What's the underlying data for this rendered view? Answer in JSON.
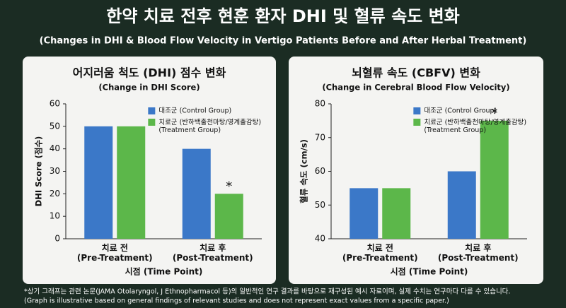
{
  "header": {
    "title": "한약 치료 전후 현훈 환자 DHI 및 혈류 속도 변화",
    "subtitle": "(Changes in DHI & Blood Flow Velocity in Vertigo Patients Before and After Herbal Treatment)"
  },
  "chart_data": [
    {
      "type": "bar",
      "title": "어지러움 척도 (DHI) 점수 변화",
      "subtitle": "(Change in DHI Score)",
      "y_label": "DHI Score (점수)",
      "x_label": "시점 (Time Point)",
      "categories": [
        "치료 전\n(Pre-Treatment)",
        "치료 후\n(Post-Treatment)"
      ],
      "series": [
        {
          "name": "대조군 (Control Group)",
          "color": "#3b78c8",
          "values": [
            50,
            40
          ]
        },
        {
          "name": "치료군 (반하백출천마탕/영계출감탕)\n(Treatment Group)",
          "color": "#5cb74a",
          "values": [
            50,
            20
          ]
        }
      ],
      "annotation": "*",
      "ylim": [
        0,
        60
      ],
      "yticks": [
        0,
        10,
        20,
        30,
        40,
        50,
        60
      ],
      "legend": "upper right"
    },
    {
      "type": "bar",
      "title": "뇌혈류 속도 (CBFV) 변화",
      "subtitle": "(Change in Cerebral Blood Flow Velocity)",
      "y_label": "혈류 속도 (cm/s)",
      "x_label": "시점 (Time Point)",
      "categories": [
        "치료 전\n(Pre-Treatment)",
        "치료 후\n(Post-Treatment)"
      ],
      "series": [
        {
          "name": "대조군 (Control Group)",
          "color": "#3b78c8",
          "values": [
            55,
            60
          ]
        },
        {
          "name": "치료군 (반하백출천마탕/영계출감탕)\n(Treatment Group)",
          "color": "#5cb74a",
          "values": [
            55,
            75
          ]
        }
      ],
      "annotation": "*",
      "ylim": [
        40,
        80
      ],
      "yticks": [
        40,
        50,
        60,
        70,
        80
      ],
      "legend": "upper right"
    }
  ],
  "footnote": [
    "*상기 그래프는 관련 논문(JAMA Otolaryngol, J Ethnopharmacol 등)의 일반적인 연구 결과를 바탕으로 재구성된 예시 자료이며, 실제 수치는 연구마다 다를 수 있습니다.",
    "(Graph is illustrative based on general findings of relevant studies and does not represent exact values from a specific paper.)"
  ]
}
